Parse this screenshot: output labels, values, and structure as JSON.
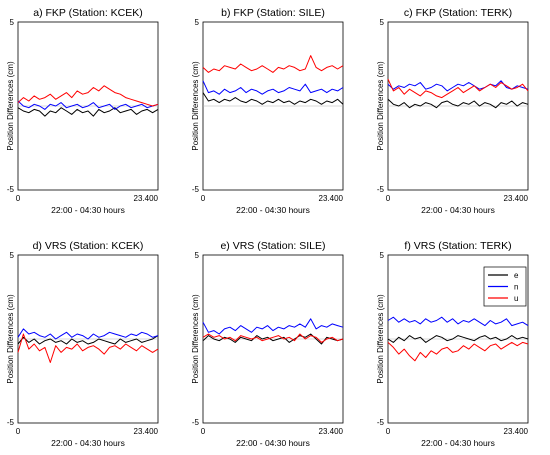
{
  "figure": {
    "x_label": "22:00 - 04:30 hours",
    "y_label": "Position Differences (cm)"
  },
  "chart_data": [
    {
      "type": "line",
      "title": "a) FKP (Station: KCEK)",
      "xlabel": "22:00 - 04:30 hours",
      "ylabel": "Position Differences (cm)",
      "x_ticks": [
        "0",
        "23.400"
      ],
      "xlim": [
        0,
        23400
      ],
      "ylim": [
        -5,
        5
      ],
      "y_ticks": [
        "5",
        "-5"
      ],
      "x": [
        0,
        900,
        1800,
        2700,
        3600,
        4500,
        5400,
        6300,
        7200,
        8100,
        9000,
        9900,
        10800,
        11700,
        12600,
        13500,
        14400,
        15300,
        16200,
        17100,
        18000,
        18900,
        19800,
        20700,
        21600,
        22500,
        23400
      ],
      "series": [
        {
          "name": "e",
          "color": "#000000",
          "values": [
            -0.1,
            -0.3,
            -0.4,
            -0.2,
            -0.3,
            -0.6,
            -0.3,
            -0.4,
            -0.1,
            -0.3,
            -0.5,
            -0.2,
            -0.4,
            -0.3,
            -0.6,
            -0.2,
            -0.4,
            -0.3,
            -0.1,
            -0.4,
            -0.3,
            -0.2,
            -0.5,
            -0.3,
            -0.2,
            -0.4,
            -0.2
          ]
        },
        {
          "name": "n",
          "color": "#0000ff",
          "values": [
            0.3,
            0.0,
            -0.1,
            0.1,
            0.0,
            -0.2,
            0.1,
            0.0,
            0.2,
            -0.1,
            0.0,
            0.1,
            -0.1,
            0.0,
            0.2,
            -0.1,
            0.0,
            0.1,
            -0.2,
            0.0,
            0.1,
            -0.1,
            0.0,
            0.1,
            -0.1,
            0.0,
            0.1
          ]
        },
        {
          "name": "u",
          "color": "#ff0000",
          "values": [
            0.2,
            0.5,
            0.3,
            0.6,
            0.4,
            0.5,
            0.7,
            0.4,
            0.6,
            0.8,
            0.5,
            0.9,
            0.7,
            0.8,
            1.1,
            0.9,
            1.2,
            1.0,
            0.8,
            0.7,
            0.5,
            0.4,
            0.3,
            0.2,
            0.1,
            0.0,
            0.1
          ]
        }
      ]
    },
    {
      "type": "line",
      "title": "b) FKP (Station: SILE)",
      "xlabel": "22:00 - 04:30 hours",
      "ylabel": "Position Differences (cm)",
      "x_ticks": [
        "0",
        "23.400"
      ],
      "xlim": [
        0,
        23400
      ],
      "ylim": [
        -5,
        5
      ],
      "y_ticks": [
        "5",
        "-5"
      ],
      "x": [
        0,
        900,
        1800,
        2700,
        3600,
        4500,
        5400,
        6300,
        7200,
        8100,
        9000,
        9900,
        10800,
        11700,
        12600,
        13500,
        14400,
        15300,
        16200,
        17100,
        18000,
        18900,
        19800,
        20700,
        21600,
        22500,
        23400
      ],
      "series": [
        {
          "name": "e",
          "color": "#000000",
          "values": [
            0.8,
            0.3,
            0.4,
            0.2,
            0.4,
            0.3,
            0.5,
            0.3,
            0.2,
            0.4,
            0.3,
            0.1,
            0.3,
            0.2,
            0.4,
            0.2,
            0.3,
            0.1,
            0.3,
            0.2,
            0.4,
            0.3,
            0.1,
            0.3,
            0.2,
            0.4,
            0.1
          ]
        },
        {
          "name": "n",
          "color": "#0000ff",
          "values": [
            1.5,
            0.8,
            0.9,
            0.7,
            1.0,
            0.8,
            0.9,
            1.1,
            0.8,
            1.0,
            0.9,
            0.7,
            0.9,
            1.0,
            0.8,
            0.9,
            1.1,
            1.0,
            0.9,
            1.3,
            0.8,
            0.9,
            1.0,
            0.8,
            1.0,
            0.9,
            1.1
          ]
        },
        {
          "name": "u",
          "color": "#ff0000",
          "values": [
            2.3,
            2.0,
            2.2,
            2.1,
            2.4,
            2.3,
            2.2,
            2.5,
            2.3,
            2.1,
            2.2,
            2.4,
            2.2,
            2.0,
            2.3,
            2.2,
            2.4,
            2.3,
            2.1,
            2.2,
            3.0,
            2.3,
            2.1,
            2.3,
            2.4,
            2.2,
            2.4
          ]
        }
      ]
    },
    {
      "type": "line",
      "title": "c) FKP (Station: TERK)",
      "xlabel": "22:00 - 04:30 hours",
      "ylabel": "Position Differences (cm)",
      "x_ticks": [
        "0",
        "23.400"
      ],
      "xlim": [
        0,
        23400
      ],
      "ylim": [
        -5,
        5
      ],
      "y_ticks": [
        "5",
        "-5"
      ],
      "x": [
        0,
        900,
        1800,
        2700,
        3600,
        4500,
        5400,
        6300,
        7200,
        8100,
        9000,
        9900,
        10800,
        11700,
        12600,
        13500,
        14400,
        15300,
        16200,
        17100,
        18000,
        18900,
        19800,
        20700,
        21600,
        22500,
        23400
      ],
      "series": [
        {
          "name": "e",
          "color": "#000000",
          "values": [
            0.4,
            0.1,
            0.0,
            0.2,
            -0.1,
            0.1,
            0.0,
            0.2,
            0.1,
            -0.1,
            0.2,
            0.3,
            0.1,
            0.0,
            0.2,
            0.1,
            0.3,
            0.0,
            0.2,
            0.1,
            -0.1,
            0.2,
            0.1,
            0.3,
            0.0,
            0.2,
            0.1
          ]
        },
        {
          "name": "n",
          "color": "#0000ff",
          "values": [
            1.3,
            1.0,
            1.2,
            1.1,
            1.3,
            1.2,
            1.4,
            1.0,
            1.1,
            1.3,
            1.2,
            0.9,
            1.1,
            1.3,
            1.2,
            1.4,
            1.2,
            1.0,
            1.1,
            1.3,
            1.2,
            1.5,
            1.1,
            1.0,
            1.2,
            1.1,
            1.0
          ]
        },
        {
          "name": "u",
          "color": "#ff0000",
          "values": [
            1.6,
            0.9,
            1.1,
            0.7,
            1.0,
            0.8,
            0.6,
            0.9,
            0.8,
            0.6,
            0.5,
            0.7,
            0.9,
            1.1,
            0.8,
            1.0,
            1.2,
            0.9,
            1.1,
            1.3,
            1.1,
            1.4,
            1.2,
            1.0,
            1.1,
            1.3,
            0.9
          ]
        }
      ]
    },
    {
      "type": "line",
      "title": "d) VRS (Station: KCEK)",
      "xlabel": "22:00 - 04:30 hours",
      "ylabel": "Position Differences (cm)",
      "x_ticks": [
        "0",
        "23.400"
      ],
      "xlim": [
        0,
        23400
      ],
      "ylim": [
        -5,
        5
      ],
      "y_ticks": [
        "5",
        "-5"
      ],
      "x": [
        0,
        900,
        1800,
        2700,
        3600,
        4500,
        5400,
        6300,
        7200,
        8100,
        9000,
        9900,
        10800,
        11700,
        12600,
        13500,
        14400,
        15300,
        16200,
        17100,
        18000,
        18900,
        19800,
        20700,
        21600,
        22500,
        23400
      ],
      "series": [
        {
          "name": "e",
          "color": "#000000",
          "values": [
            -0.3,
            0.1,
            -0.2,
            0.0,
            -0.3,
            -0.1,
            0.0,
            -0.2,
            -0.1,
            -0.3,
            0.0,
            -0.2,
            -0.1,
            -0.3,
            -0.2,
            0.0,
            -0.1,
            -0.2,
            -0.3,
            0.0,
            -0.2,
            -0.1,
            0.0,
            -0.2,
            -0.1,
            0.0,
            0.2
          ]
        },
        {
          "name": "n",
          "color": "#0000ff",
          "values": [
            0.1,
            0.6,
            0.3,
            0.4,
            0.2,
            0.1,
            0.3,
            0.0,
            0.2,
            0.4,
            0.1,
            0.3,
            0.2,
            0.0,
            0.3,
            0.1,
            0.2,
            0.4,
            0.3,
            0.2,
            0.1,
            0.3,
            0.2,
            0.4,
            0.3,
            0.1,
            0.2
          ]
        },
        {
          "name": "u",
          "color": "#ff0000",
          "values": [
            -0.8,
            0.3,
            -0.6,
            -0.3,
            -0.7,
            -0.5,
            -1.4,
            -0.4,
            -0.8,
            -0.5,
            -0.6,
            -0.3,
            -0.7,
            -0.5,
            -0.4,
            -0.6,
            -0.9,
            -0.5,
            -0.4,
            -0.6,
            -0.3,
            -0.5,
            -0.7,
            -0.4,
            -0.6,
            -0.8,
            -0.6
          ]
        }
      ]
    },
    {
      "type": "line",
      "title": "e) VRS (Station: SILE)",
      "xlabel": "22:00 - 04:30 hours",
      "ylabel": "Position Differences (cm)",
      "x_ticks": [
        "0",
        "23.400"
      ],
      "xlim": [
        0,
        23400
      ],
      "ylim": [
        -5,
        5
      ],
      "y_ticks": [
        "5",
        "-5"
      ],
      "x": [
        0,
        900,
        1800,
        2700,
        3600,
        4500,
        5400,
        6300,
        7200,
        8100,
        9000,
        9900,
        10800,
        11700,
        12600,
        13500,
        14400,
        15300,
        16200,
        17100,
        18000,
        18900,
        19800,
        20700,
        21600,
        22500,
        23400
      ],
      "series": [
        {
          "name": "e",
          "color": "#000000",
          "values": [
            -0.1,
            0.2,
            0.0,
            -0.1,
            0.1,
            0.0,
            -0.2,
            0.1,
            0.0,
            -0.1,
            0.2,
            0.0,
            0.1,
            -0.1,
            0.0,
            0.1,
            -0.2,
            0.0,
            0.2,
            0.1,
            0.3,
            0.0,
            -0.3,
            0.1,
            0.0,
            -0.1,
            0.0
          ]
        },
        {
          "name": "n",
          "color": "#0000ff",
          "values": [
            1.0,
            0.4,
            0.5,
            0.3,
            0.6,
            0.7,
            0.5,
            0.8,
            0.6,
            0.4,
            0.7,
            0.6,
            0.8,
            0.5,
            0.7,
            0.6,
            0.8,
            0.7,
            0.9,
            0.7,
            1.2,
            0.6,
            0.8,
            0.7,
            0.9,
            0.8,
            0.7
          ]
        },
        {
          "name": "u",
          "color": "#ff0000",
          "values": [
            0.1,
            0.3,
            0.1,
            0.2,
            0.0,
            0.1,
            -0.1,
            0.2,
            0.1,
            0.0,
            0.1,
            -0.1,
            0.0,
            0.1,
            0.2,
            0.0,
            0.1,
            -0.1,
            0.3,
            0.0,
            0.2,
            0.1,
            -0.2,
            0.0,
            0.1,
            -0.1,
            0.0
          ]
        }
      ]
    },
    {
      "type": "line",
      "title": "f) VRS (Station: TERK)",
      "xlabel": "22:00 - 04:30 hours",
      "ylabel": "Position Differences (cm)",
      "x_ticks": [
        "0",
        "23.400"
      ],
      "xlim": [
        0,
        23400
      ],
      "ylim": [
        -5,
        5
      ],
      "y_ticks": [
        "5",
        "-5"
      ],
      "legend": {
        "position": "top-right",
        "entries": [
          "e",
          "n",
          "u"
        ]
      },
      "x": [
        0,
        900,
        1800,
        2700,
        3600,
        4500,
        5400,
        6300,
        7200,
        8100,
        9000,
        9900,
        10800,
        11700,
        12600,
        13500,
        14400,
        15300,
        16200,
        17100,
        18000,
        18900,
        19800,
        20700,
        21600,
        22500,
        23400
      ],
      "series": [
        {
          "name": "e",
          "color": "#000000",
          "values": [
            0.0,
            -0.2,
            0.1,
            -0.1,
            0.2,
            0.0,
            0.1,
            -0.2,
            0.0,
            0.2,
            0.1,
            -0.1,
            0.0,
            0.2,
            0.1,
            0.0,
            -0.1,
            0.1,
            0.2,
            0.0,
            0.1,
            -0.1,
            0.0,
            0.2,
            0.0,
            0.1,
            0.0
          ]
        },
        {
          "name": "n",
          "color": "#0000ff",
          "values": [
            1.1,
            1.3,
            1.0,
            1.2,
            1.0,
            1.1,
            0.9,
            1.2,
            1.0,
            1.1,
            1.3,
            1.0,
            1.2,
            0.9,
            1.1,
            1.0,
            1.2,
            1.0,
            0.8,
            1.1,
            0.9,
            1.0,
            1.2,
            0.8,
            0.9,
            1.0,
            0.8
          ]
        },
        {
          "name": "u",
          "color": "#ff0000",
          "values": [
            -0.2,
            -0.5,
            -0.9,
            -0.6,
            -1.0,
            -1.3,
            -0.8,
            -1.1,
            -0.7,
            -0.9,
            -0.6,
            -0.5,
            -0.8,
            -0.7,
            -0.4,
            -0.6,
            -0.3,
            -0.5,
            -0.7,
            -0.4,
            -0.3,
            -0.6,
            -0.4,
            -0.2,
            -0.4,
            -0.2,
            -0.3
          ]
        }
      ]
    }
  ]
}
